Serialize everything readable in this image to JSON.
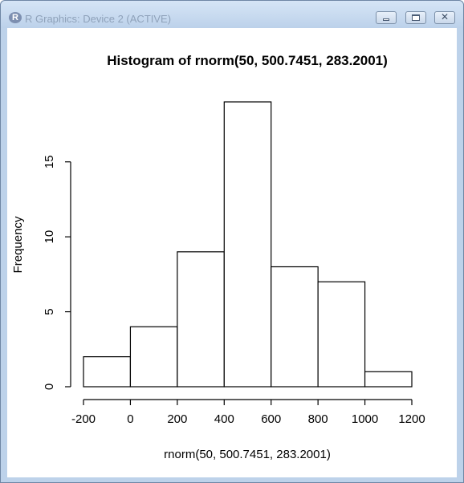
{
  "window": {
    "title": "R Graphics: Device 2 (ACTIVE)",
    "icon": "r-logo-icon",
    "icon_letter": "R",
    "buttons": {
      "minimize": "minimize-icon",
      "maximize": "maximize-icon",
      "close": "close-icon",
      "close_glyph": "✕"
    }
  },
  "chart_data": {
    "type": "bar",
    "title": "Histogram of rnorm(50, 500.7451, 283.2001)",
    "xlabel": "rnorm(50, 500.7451, 283.2001)",
    "ylabel": "Frequency",
    "bins": [
      {
        "from": -200,
        "to": 0,
        "count": 2
      },
      {
        "from": 0,
        "to": 200,
        "count": 4
      },
      {
        "from": 200,
        "to": 400,
        "count": 9
      },
      {
        "from": 400,
        "to": 600,
        "count": 19
      },
      {
        "from": 600,
        "to": 800,
        "count": 8
      },
      {
        "from": 800,
        "to": 1000,
        "count": 7
      },
      {
        "from": 1000,
        "to": 1200,
        "count": 1
      }
    ],
    "xticks": [
      -200,
      0,
      200,
      400,
      600,
      800,
      1000,
      1200
    ],
    "xtick_labels": [
      "-200",
      "0",
      "200",
      "400",
      "600",
      "800",
      "1000",
      "1200"
    ],
    "yticks": [
      0,
      5,
      10,
      15
    ],
    "ytick_labels": [
      "0",
      "5",
      "10",
      "15"
    ],
    "xlim": [
      -200,
      1200
    ],
    "ylim": [
      0,
      19
    ],
    "grid": false,
    "colors": {
      "bar_fill": "#ffffff",
      "bar_stroke": "#000000"
    }
  }
}
